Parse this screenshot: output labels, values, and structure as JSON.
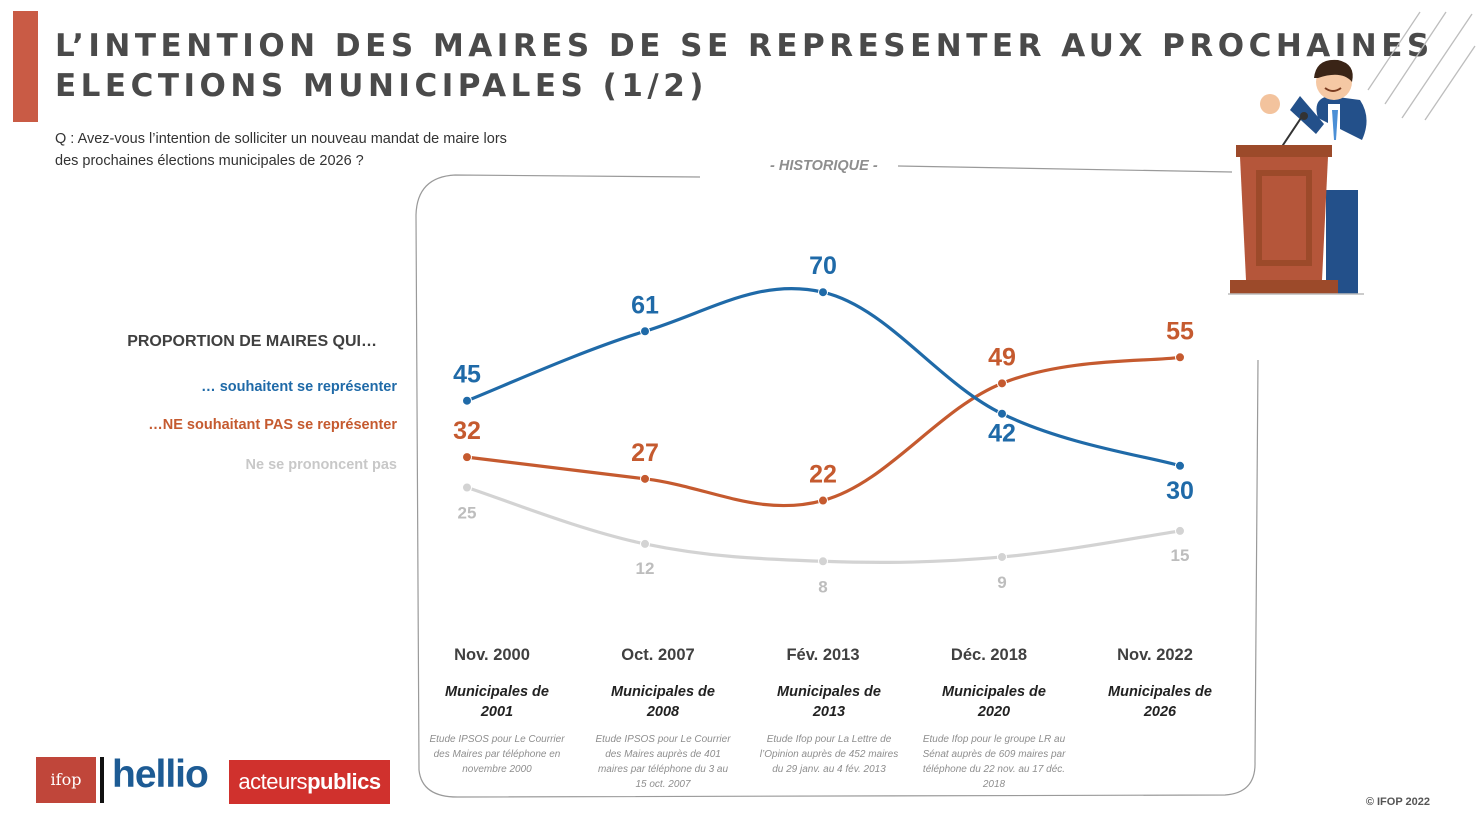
{
  "header": {
    "title_line1": "L’INTENTION DES MAIRES DE SE REPRESENTER AUX PROCHAINES",
    "title_line2": "ELECTIONS MUNICIPALES (1/2)",
    "question_line1": "Q : Avez-vous l’intention de solliciter un nouveau mandat de maire lors",
    "question_line2": "des prochaines élections municipales de 2026 ?",
    "accent_color": "#c95b45"
  },
  "historique_label": "- HISTORIQUE -",
  "legend": {
    "heading": "PROPORTION DE MAIRES QUI…",
    "items": [
      {
        "label": "… souhaitent se représenter",
        "color": "#1f6aa8"
      },
      {
        "label": "…NE souhaitant PAS  se représenter",
        "color": "#c55a2f"
      },
      {
        "label": "Ne se prononcent pas",
        "color": "#c8c8c8"
      }
    ]
  },
  "chart_data": {
    "type": "line",
    "categories": [
      "Nov. 2000",
      "Oct. 2007",
      "Fév. 2013",
      "Déc. 2018",
      "Nov. 2022"
    ],
    "series": [
      {
        "name": "… souhaitent se représenter",
        "values": [
          45,
          61,
          70,
          42,
          30
        ],
        "color": "#1f6aa8"
      },
      {
        "name": "…NE souhaitant PAS  se représenter",
        "values": [
          32,
          27,
          22,
          49,
          55
        ],
        "color": "#c55a2f"
      },
      {
        "name": "Ne se prononcent pas",
        "values": [
          25,
          12,
          8,
          9,
          15
        ],
        "color": "#d3d3d3"
      }
    ],
    "ylim": [
      0,
      80
    ],
    "grid": false,
    "legend_position": "left"
  },
  "periods": [
    {
      "date": "Nov. 2000",
      "election": "Municipales de 2001",
      "source": "Etude IPSOS pour Le Courrier des Maires par téléphone en novembre 2000"
    },
    {
      "date": "Oct. 2007",
      "election": "Municipales de 2008",
      "source": "Etude IPSOS pour Le Courrier des Maires auprès de 401 maires par téléphone du 3 au 15 oct. 2007"
    },
    {
      "date": "Fév. 2013",
      "election": "Municipales de 2013",
      "source": "Etude Ifop pour La Lettre de l’Opinion auprès de 452 maires du 29 janv. au 4 fév. 2013"
    },
    {
      "date": "Déc. 2018",
      "election": "Municipales de 2020",
      "source": "Etude Ifop pour le groupe LR au Sénat auprès de 609 maires par téléphone du 22 nov. au 17 déc. 2018"
    },
    {
      "date": "Nov. 2022",
      "election": "Municipales de 2026",
      "source": ""
    }
  ],
  "footer": {
    "logos": {
      "ifop": "ifop",
      "hellio": "hellio",
      "acteurs_part1": "acteurs",
      "acteurs_part2": "publics"
    },
    "copyright": "© IFOP 2022"
  }
}
